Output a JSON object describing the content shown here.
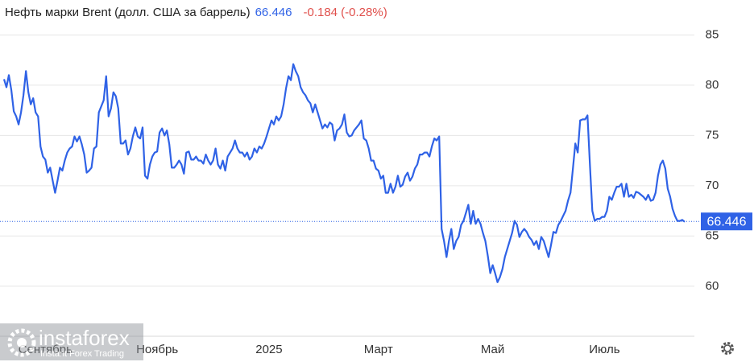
{
  "chart_data": {
    "type": "line",
    "title": "Нефть марки Brent (долл. США за баррель)",
    "price": 66.446,
    "change": "-0.184 (-0.28%)",
    "last_value": 66.446,
    "watermark": "instaforex",
    "watermark_subtitle": "Instant Forex Trading",
    "ylim": [
      55.1,
      88.4
    ],
    "yticks": [
      60,
      65,
      70,
      75,
      80,
      85
    ],
    "xlim": [
      0,
      280
    ],
    "xticks": [
      {
        "value": 17,
        "label": "Сентябрь"
      },
      {
        "value": 63,
        "label": "Ноябрь"
      },
      {
        "value": 109,
        "label": "2025"
      },
      {
        "value": 154,
        "label": "Март"
      },
      {
        "value": 201,
        "label": "Май"
      },
      {
        "value": 247,
        "label": "Июль"
      }
    ],
    "grid": true,
    "series": [
      {
        "color": "#2f62e6",
        "values": [
          80.6,
          79.8,
          81.0,
          79.5,
          77.4,
          76.9,
          76.1,
          77.3,
          79.0,
          81.4,
          79.3,
          78.1,
          78.7,
          77.3,
          76.9,
          73.9,
          72.9,
          72.6,
          71.3,
          71.8,
          70.5,
          69.3,
          70.5,
          71.8,
          71.5,
          72.5,
          73.3,
          73.7,
          73.9,
          74.9,
          74.4,
          74.9,
          74.1,
          73.1,
          71.3,
          71.5,
          71.8,
          73.7,
          73.9,
          77.3,
          77.9,
          78.5,
          80.9,
          76.9,
          77.7,
          79.3,
          78.9,
          77.7,
          74.2,
          74.2,
          74.5,
          73.1,
          73.7,
          74.9,
          75.8,
          74.9,
          74.7,
          75.8,
          71.0,
          70.7,
          72.1,
          72.9,
          73.3,
          73.4,
          75.3,
          75.7,
          75.0,
          75.5,
          74.1,
          71.8,
          71.8,
          72.1,
          72.5,
          72.1,
          71.2,
          73.3,
          73.4,
          72.6,
          72.6,
          72.9,
          72.5,
          72.5,
          72.2,
          73.1,
          72.5,
          72.1,
          72.5,
          73.7,
          72.1,
          71.7,
          72.5,
          71.5,
          72.9,
          73.3,
          73.7,
          74.5,
          73.7,
          73.3,
          73.3,
          72.9,
          73.3,
          72.6,
          72.9,
          73.7,
          73.3,
          73.9,
          73.7,
          74.2,
          74.9,
          75.7,
          76.5,
          76.1,
          76.9,
          76.5,
          76.9,
          78.1,
          79.7,
          80.9,
          80.5,
          82.1,
          81.4,
          80.9,
          79.8,
          79.3,
          79.0,
          78.5,
          78.2,
          77.3,
          78.1,
          77.3,
          76.5,
          75.7,
          76.1,
          75.8,
          76.3,
          76.1,
          74.5,
          75.5,
          75.7,
          76.1,
          77.1,
          75.3,
          74.9,
          75.0,
          75.5,
          75.8,
          76.1,
          76.5,
          74.7,
          74.5,
          73.7,
          72.5,
          72.5,
          71.7,
          71.5,
          70.7,
          71.0,
          69.3,
          69.3,
          70.2,
          69.3,
          69.9,
          71.0,
          69.9,
          70.1,
          70.9,
          71.3,
          70.5,
          70.9,
          71.7,
          72.1,
          73.1,
          73.1,
          73.3,
          73.3,
          72.9,
          73.9,
          74.7,
          74.5,
          74.9,
          65.7,
          64.5,
          62.9,
          64.5,
          65.7,
          63.7,
          64.5,
          64.9,
          66.1,
          66.5,
          67.3,
          68.1,
          66.2,
          67.5,
          66.2,
          66.7,
          66.2,
          65.3,
          64.5,
          63.0,
          61.3,
          62.1,
          61.3,
          60.4,
          60.9,
          61.7,
          62.9,
          63.7,
          64.5,
          65.3,
          66.5,
          66.1,
          64.9,
          65.4,
          65.7,
          65.4,
          64.9,
          64.6,
          64.1,
          64.5,
          63.7,
          64.9,
          64.5,
          63.7,
          62.9,
          64.1,
          65.4,
          65.3,
          66.1,
          66.5,
          67.0,
          67.5,
          68.5,
          69.3,
          71.7,
          74.2,
          73.3,
          76.5,
          76.6,
          76.6,
          77.0,
          72.1,
          67.5,
          66.5,
          66.7,
          66.7,
          66.9,
          66.9,
          67.5,
          68.9,
          68.6,
          69.3,
          69.9,
          69.9,
          70.2,
          68.9,
          70.2,
          68.9,
          69.1,
          68.8,
          69.4,
          69.3,
          69.1,
          68.9,
          68.6,
          69.1,
          68.5,
          68.6,
          69.3,
          71.0,
          72.1,
          72.5,
          71.7,
          69.7,
          68.9,
          67.7,
          67.0,
          66.5,
          66.5,
          66.6,
          66.4
        ]
      }
    ]
  }
}
